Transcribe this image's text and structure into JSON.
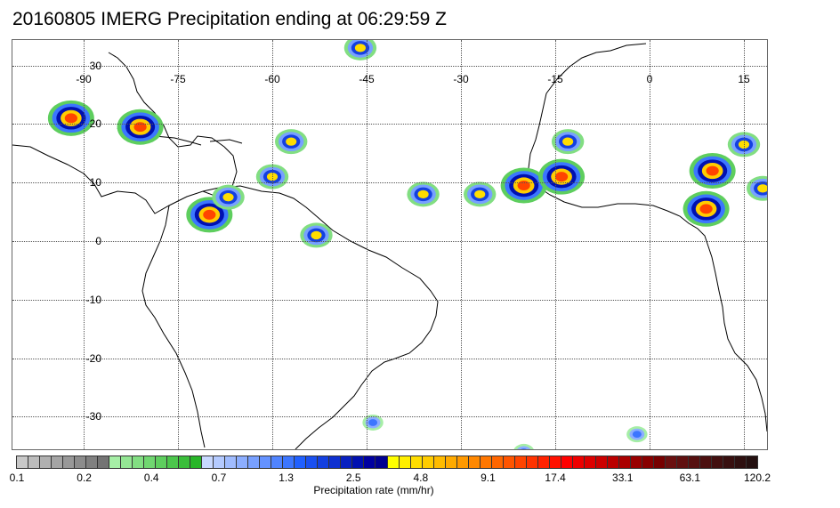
{
  "title": "20160805 IMERG Precipitation ending at 06:29:59 Z",
  "map": {
    "lon_labels": [
      "-90",
      "-75",
      "-60",
      "-45",
      "-30",
      "-15",
      "0",
      "15"
    ],
    "lat_labels": [
      "30",
      "20",
      "10",
      "0",
      "-10",
      "-20",
      "-30"
    ]
  },
  "colorbar": {
    "tick_labels": [
      "0.1",
      "0.2",
      "0.4",
      "0.7",
      "1.3",
      "2.5",
      "4.8",
      "9.1",
      "17.4",
      "33.1",
      "63.1",
      "120.2"
    ],
    "label": "Precipitation rate (mm/hr)",
    "colors": [
      "#c8c8c8",
      "#bcbcbc",
      "#b0b0b0",
      "#a4a4a4",
      "#989898",
      "#8c8c8c",
      "#808080",
      "#747474",
      "#a6eea6",
      "#94e694",
      "#82de82",
      "#70d670",
      "#5ece5e",
      "#4cc64c",
      "#3abe3a",
      "#28b628",
      "#c8d8ff",
      "#b4caff",
      "#a0bcff",
      "#8caeff",
      "#78a0ff",
      "#6492ff",
      "#5084ff",
      "#3c76ff",
      "#2060ff",
      "#1a50f0",
      "#1440e0",
      "#0e30d0",
      "#0820c0",
      "#0010b0",
      "#0000a0",
      "#000090",
      "#ffff00",
      "#ffee00",
      "#ffdd00",
      "#ffcc00",
      "#ffbb00",
      "#ffaa00",
      "#ff9900",
      "#ff8800",
      "#ff7700",
      "#ff6600",
      "#ff5500",
      "#ff4400",
      "#ff3300",
      "#ff2200",
      "#ff1100",
      "#ff0000",
      "#ee0000",
      "#dd0000",
      "#cc0000",
      "#bb0000",
      "#aa0000",
      "#990000",
      "#880000",
      "#770000",
      "#6a1010",
      "#601010",
      "#561010",
      "#4c1010",
      "#421010",
      "#381010",
      "#2e1010",
      "#241010"
    ]
  },
  "precip_cells": [
    {
      "lon": -92,
      "lat": 21,
      "level": "heavy"
    },
    {
      "lon": -81,
      "lat": 19.5,
      "level": "heavy"
    },
    {
      "lon": -70,
      "lat": 4.5,
      "level": "heavy"
    },
    {
      "lon": -67,
      "lat": 7.5,
      "level": "moderate"
    },
    {
      "lon": -60,
      "lat": 11,
      "level": "moderate"
    },
    {
      "lon": -57,
      "lat": 17,
      "level": "moderate"
    },
    {
      "lon": -53,
      "lat": 1,
      "level": "moderate"
    },
    {
      "lon": -46,
      "lat": 33,
      "level": "moderate"
    },
    {
      "lon": -36,
      "lat": 8,
      "level": "moderate"
    },
    {
      "lon": -27,
      "lat": 8,
      "level": "moderate"
    },
    {
      "lon": -20,
      "lat": 9.5,
      "level": "heavy"
    },
    {
      "lon": -14,
      "lat": 11,
      "level": "heavy"
    },
    {
      "lon": -13,
      "lat": 17,
      "level": "moderate"
    },
    {
      "lon": 10,
      "lat": 12,
      "level": "heavy"
    },
    {
      "lon": 9,
      "lat": 5.5,
      "level": "heavy"
    },
    {
      "lon": 15,
      "lat": 16.5,
      "level": "moderate"
    },
    {
      "lon": 18,
      "lat": 9,
      "level": "moderate"
    },
    {
      "lon": -20,
      "lat": -36,
      "level": "light"
    },
    {
      "lon": -2,
      "lat": -33,
      "level": "light"
    },
    {
      "lon": -44,
      "lat": -31,
      "level": "light"
    }
  ]
}
